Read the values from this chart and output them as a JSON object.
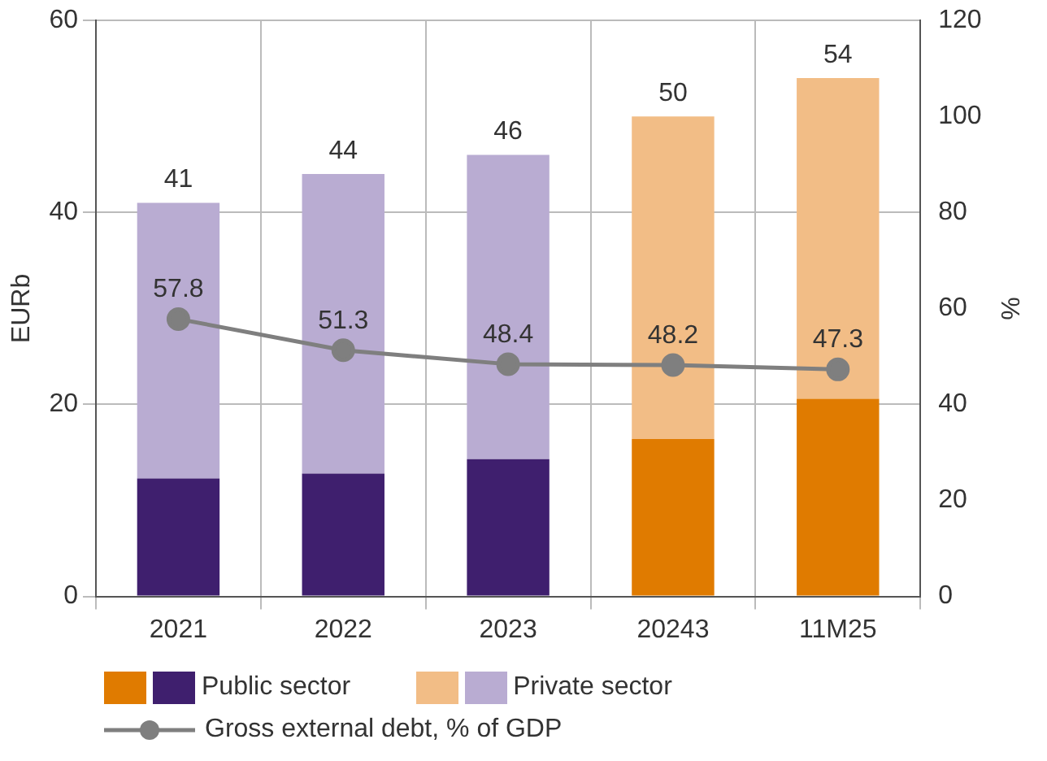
{
  "chart_data": {
    "type": "bar",
    "stacked": true,
    "categories": [
      "2021",
      "2022",
      "2023",
      "20243",
      "11M25"
    ],
    "series": [
      {
        "name": "Public sector",
        "colors": [
          "#3f1f6e",
          "#3f1f6e",
          "#3f1f6e",
          "#e07b00",
          "#e07b00"
        ],
        "values": [
          12.3,
          12.8,
          14.3,
          16.4,
          20.6
        ]
      },
      {
        "name": "Private sector",
        "colors": [
          "#b9acd2",
          "#b9acd2",
          "#b9acd2",
          "#f2bd86",
          "#f2bd86"
        ],
        "values": [
          28.7,
          31.2,
          31.7,
          33.6,
          33.4
        ]
      },
      {
        "name": "Gross external debt, % of GDP",
        "type": "line",
        "axis": "y2",
        "color": "#7f7f7f",
        "marker": "circle",
        "values": [
          57.8,
          51.3,
          48.4,
          48.2,
          47.3
        ],
        "value_labels": [
          "57.8",
          "51.3",
          "48.4",
          "48.2",
          "47.3"
        ]
      }
    ],
    "totals": [
      "41",
      "44",
      "46",
      "50",
      "54"
    ],
    "ylabel": "EURb",
    "y2label": "%",
    "ylim": [
      0,
      60
    ],
    "yticks": [
      0,
      20,
      40,
      60
    ],
    "y2lim": [
      0,
      120
    ],
    "y2ticks": [
      0,
      20,
      40,
      60,
      80,
      100,
      120
    ],
    "grid": true,
    "legend": "bottom"
  }
}
